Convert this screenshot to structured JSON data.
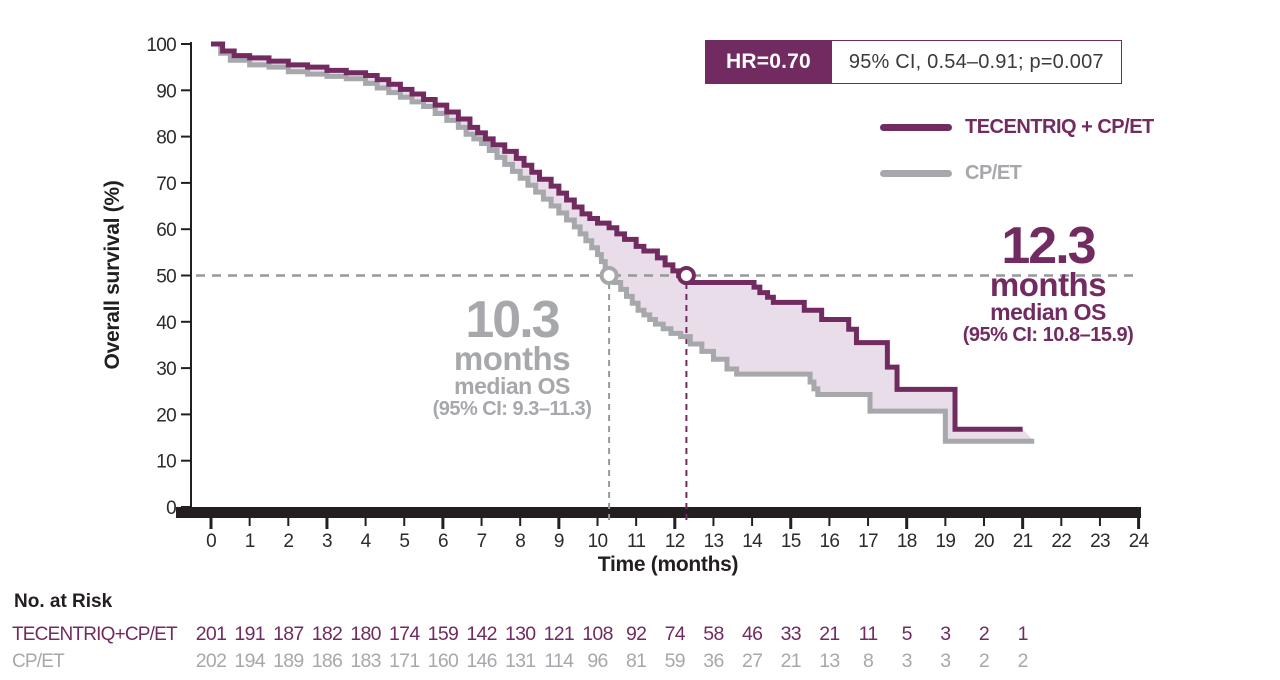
{
  "colors": {
    "purple": "#722b61",
    "gray": "#a6a8ab",
    "between_fill": "#e8dde8",
    "dark": "#231f20",
    "dash_gray": "#96989b",
    "white": "#ffffff"
  },
  "hr_box": {
    "hr_label": "HR=0.70",
    "ci_label": "95% CI, 0.54–0.91; p=0.007"
  },
  "legend": [
    {
      "label": "TECENTRIQ + CP/ET",
      "color_key": "purple"
    },
    {
      "label": "CP/ET",
      "color_key": "gray"
    }
  ],
  "annotations": {
    "treatment": {
      "value": "12.3",
      "unit": "months",
      "sub": "median OS",
      "ci": "(95% CI: 10.8–15.9)"
    },
    "control": {
      "value": "10.3",
      "unit": "months",
      "sub": "median OS",
      "ci": "(95% CI: 9.3–11.3)"
    }
  },
  "chart_data": {
    "type": "line",
    "subtype": "kaplan-meier-step",
    "title": "",
    "xlabel": "Time (months)",
    "ylabel": "Overall survival (%)",
    "xlim": [
      0,
      24
    ],
    "ylim": [
      0,
      100
    ],
    "x_ticks": [
      0,
      1,
      2,
      3,
      4,
      5,
      6,
      7,
      8,
      9,
      10,
      11,
      12,
      13,
      14,
      15,
      16,
      17,
      18,
      19,
      20,
      21,
      22,
      23,
      24
    ],
    "y_ticks": [
      0,
      10,
      20,
      30,
      40,
      50,
      60,
      70,
      80,
      90,
      100
    ],
    "grid": false,
    "legend_position": "top-right",
    "median_reference_pct": 50,
    "medians": [
      {
        "series": "TECENTRIQ + CP/ET",
        "months": 12.3
      },
      {
        "series": "CP/ET",
        "months": 10.3
      }
    ],
    "series": [
      {
        "name": "TECENTRIQ + CP/ET",
        "color_key": "purple",
        "end_x": 21.0,
        "steps": [
          [
            0,
            100
          ],
          [
            0.3,
            98.5
          ],
          [
            0.6,
            97.5
          ],
          [
            1,
            97
          ],
          [
            1.5,
            96.3
          ],
          [
            2,
            95.5
          ],
          [
            2.5,
            95
          ],
          [
            3,
            94.3
          ],
          [
            3.5,
            93.8
          ],
          [
            4,
            93.2
          ],
          [
            4.3,
            92.3
          ],
          [
            4.6,
            91.3
          ],
          [
            4.9,
            90.2
          ],
          [
            5.2,
            89.2
          ],
          [
            5.5,
            88
          ],
          [
            5.8,
            86.8
          ],
          [
            6.1,
            85.3
          ],
          [
            6.4,
            83.8
          ],
          [
            6.7,
            82
          ],
          [
            6.9,
            80.8
          ],
          [
            7.1,
            79.5
          ],
          [
            7.3,
            78.2
          ],
          [
            7.6,
            76.8
          ],
          [
            7.9,
            75.3
          ],
          [
            8.1,
            73.8
          ],
          [
            8.3,
            72.3
          ],
          [
            8.5,
            70.8
          ],
          [
            8.8,
            69.3
          ],
          [
            9,
            67.8
          ],
          [
            9.2,
            66.3
          ],
          [
            9.4,
            64.8
          ],
          [
            9.6,
            63.3
          ],
          [
            9.8,
            62.3
          ],
          [
            10,
            61.3
          ],
          [
            10.3,
            60.3
          ],
          [
            10.5,
            59
          ],
          [
            10.7,
            57.8
          ],
          [
            11,
            56.3
          ],
          [
            11.2,
            55.3
          ],
          [
            11.55,
            53.8
          ],
          [
            11.75,
            52.3
          ],
          [
            11.95,
            51
          ],
          [
            12.1,
            50
          ],
          [
            12.3,
            48.5
          ],
          [
            14.05,
            47.5
          ],
          [
            14.2,
            46.3
          ],
          [
            14.4,
            45.3
          ],
          [
            14.55,
            44.2
          ],
          [
            15.35,
            42.5
          ],
          [
            15.8,
            40.5
          ],
          [
            16.5,
            38.4
          ],
          [
            16.7,
            35.5
          ],
          [
            17.5,
            30.2
          ],
          [
            17.75,
            25.4
          ],
          [
            19.25,
            16.8
          ]
        ]
      },
      {
        "name": "CP/ET",
        "color_key": "gray",
        "end_x": 21.3,
        "steps": [
          [
            0,
            100
          ],
          [
            0.25,
            98
          ],
          [
            0.5,
            96.5
          ],
          [
            1,
            95.5
          ],
          [
            1.5,
            95
          ],
          [
            2,
            94
          ],
          [
            2.5,
            93.5
          ],
          [
            3,
            93
          ],
          [
            3.5,
            92.5
          ],
          [
            4,
            91.5
          ],
          [
            4.3,
            90.5
          ],
          [
            4.6,
            89.5
          ],
          [
            4.9,
            88.5
          ],
          [
            5.2,
            87.5
          ],
          [
            5.5,
            86.5
          ],
          [
            5.8,
            85
          ],
          [
            6.1,
            83.5
          ],
          [
            6.4,
            82
          ],
          [
            6.6,
            80.5
          ],
          [
            6.8,
            79.5
          ],
          [
            7,
            78.5
          ],
          [
            7.2,
            77
          ],
          [
            7.4,
            75.5
          ],
          [
            7.6,
            74
          ],
          [
            7.8,
            72.5
          ],
          [
            8,
            71
          ],
          [
            8.2,
            69.5
          ],
          [
            8.4,
            68
          ],
          [
            8.6,
            66.5
          ],
          [
            8.8,
            65
          ],
          [
            9,
            63.5
          ],
          [
            9.2,
            62
          ],
          [
            9.4,
            60.5
          ],
          [
            9.55,
            59
          ],
          [
            9.7,
            57.5
          ],
          [
            9.85,
            56
          ],
          [
            10,
            54.5
          ],
          [
            10.1,
            53
          ],
          [
            10.2,
            51.5
          ],
          [
            10.3,
            50
          ],
          [
            10.45,
            48.5
          ],
          [
            10.6,
            47
          ],
          [
            10.75,
            45.5
          ],
          [
            10.9,
            44
          ],
          [
            11.05,
            42.5
          ],
          [
            11.2,
            41.5
          ],
          [
            11.35,
            40.5
          ],
          [
            11.5,
            39.5
          ],
          [
            11.7,
            38.5
          ],
          [
            11.9,
            37.5
          ],
          [
            12.15,
            36.8
          ],
          [
            12.4,
            35.2
          ],
          [
            12.7,
            33.6
          ],
          [
            13,
            31.9
          ],
          [
            13.35,
            29.8
          ],
          [
            13.6,
            28.7
          ],
          [
            15.5,
            27
          ],
          [
            15.6,
            25.5
          ],
          [
            15.7,
            24.3
          ],
          [
            17.05,
            20.7
          ],
          [
            19,
            14.2
          ]
        ]
      }
    ]
  },
  "risk_table": {
    "title": "No. at Risk",
    "months": [
      0,
      1,
      2,
      3,
      4,
      5,
      6,
      7,
      8,
      9,
      10,
      11,
      12,
      13,
      14,
      15,
      16,
      17,
      18,
      19,
      20,
      21
    ],
    "rows": [
      {
        "label": "TECENTRIQ+CP/ET",
        "color_key": "purple",
        "values": [
          201,
          191,
          187,
          182,
          180,
          174,
          159,
          142,
          130,
          121,
          108,
          92,
          74,
          58,
          46,
          33,
          21,
          11,
          5,
          3,
          2,
          1
        ]
      },
      {
        "label": "CP/ET",
        "color_key": "gray",
        "values": [
          202,
          194,
          189,
          186,
          183,
          171,
          160,
          146,
          131,
          114,
          96,
          81,
          59,
          36,
          27,
          21,
          13,
          8,
          3,
          3,
          2,
          2
        ]
      }
    ]
  }
}
